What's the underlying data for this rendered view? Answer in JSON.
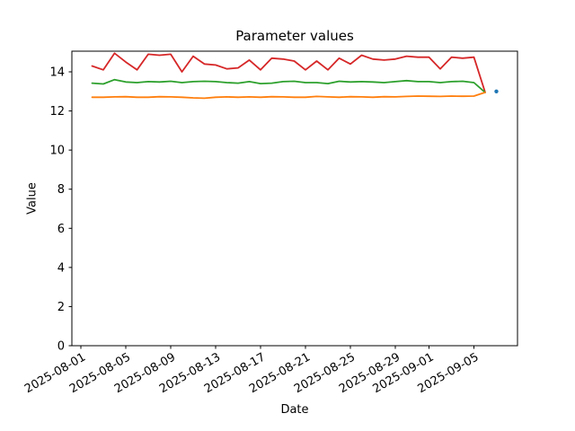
{
  "chart_data": {
    "type": "line",
    "title": "Parameter values",
    "xlabel": "Date",
    "ylabel": "Value",
    "ylim": [
      0,
      15.05
    ],
    "grid": false,
    "legend": "none",
    "axis_color": "#000000",
    "background_color": "#ffffff",
    "y_ticks": [
      0,
      2,
      4,
      6,
      8,
      10,
      12,
      14
    ],
    "x_ticks": [
      "2025-08-01",
      "2025-08-05",
      "2025-08-09",
      "2025-08-13",
      "2025-08-17",
      "2025-08-21",
      "2025-08-25",
      "2025-08-29",
      "2025-09-01",
      "2025-09-05"
    ],
    "x": [
      "2025-08-02",
      "2025-08-03",
      "2025-08-04",
      "2025-08-05",
      "2025-08-06",
      "2025-08-07",
      "2025-08-08",
      "2025-08-09",
      "2025-08-10",
      "2025-08-11",
      "2025-08-12",
      "2025-08-13",
      "2025-08-14",
      "2025-08-15",
      "2025-08-16",
      "2025-08-17",
      "2025-08-18",
      "2025-08-19",
      "2025-08-20",
      "2025-08-21",
      "2025-08-22",
      "2025-08-23",
      "2025-08-24",
      "2025-08-25",
      "2025-08-26",
      "2025-08-27",
      "2025-08-28",
      "2025-08-29",
      "2025-08-30",
      "2025-08-31",
      "2025-09-01",
      "2025-09-02",
      "2025-09-03",
      "2025-09-04",
      "2025-09-05",
      "2025-09-06"
    ],
    "series": [
      {
        "name": "red",
        "color": "#d62728",
        "values": [
          14.3,
          14.1,
          14.95,
          14.5,
          14.1,
          14.9,
          14.85,
          14.9,
          14.0,
          14.8,
          14.4,
          14.35,
          14.15,
          14.2,
          14.6,
          14.1,
          14.7,
          14.65,
          14.55,
          14.1,
          14.55,
          14.1,
          14.7,
          14.4,
          14.85,
          14.65,
          14.6,
          14.65,
          14.8,
          14.75,
          14.75,
          14.15,
          14.75,
          14.7,
          14.75,
          12.95
        ]
      },
      {
        "name": "green",
        "color": "#2ca02c",
        "values": [
          13.42,
          13.38,
          13.6,
          13.48,
          13.45,
          13.5,
          13.48,
          13.52,
          13.45,
          13.5,
          13.52,
          13.5,
          13.45,
          13.42,
          13.5,
          13.4,
          13.42,
          13.5,
          13.52,
          13.45,
          13.45,
          13.4,
          13.52,
          13.48,
          13.5,
          13.48,
          13.45,
          13.5,
          13.55,
          13.5,
          13.5,
          13.45,
          13.5,
          13.52,
          13.45,
          12.95
        ]
      },
      {
        "name": "orange",
        "color": "#ff7f0e",
        "values": [
          12.7,
          12.7,
          12.72,
          12.73,
          12.7,
          12.7,
          12.73,
          12.72,
          12.7,
          12.67,
          12.65,
          12.7,
          12.72,
          12.7,
          12.72,
          12.7,
          12.73,
          12.72,
          12.7,
          12.7,
          12.74,
          12.72,
          12.7,
          12.73,
          12.72,
          12.7,
          12.73,
          12.72,
          12.74,
          12.76,
          12.75,
          12.74,
          12.76,
          12.75,
          12.76,
          12.95
        ]
      }
    ],
    "point_series": [
      {
        "name": "blue",
        "color": "#1f77b4",
        "x": "2025-09-07",
        "value": 13.0
      }
    ]
  }
}
